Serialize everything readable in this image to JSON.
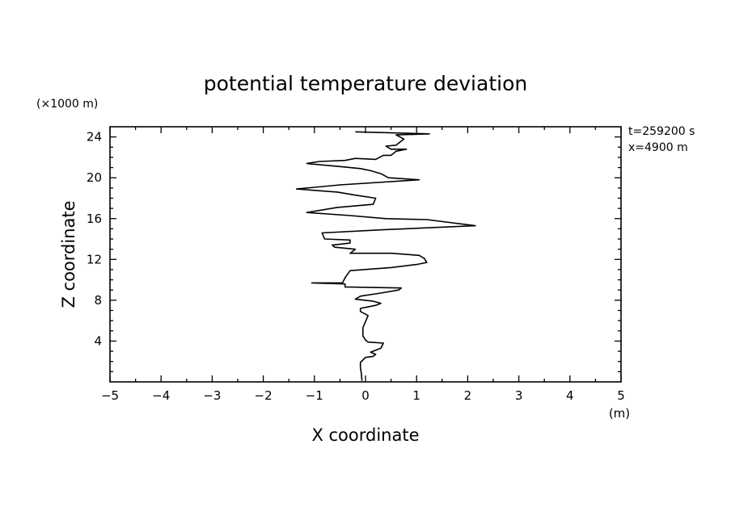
{
  "chart_data": {
    "type": "line",
    "title": "potential temperature deviation",
    "xlabel": "X coordinate",
    "ylabel": "Z coordinate",
    "x_unit": "(m)",
    "y_unit": "(×1000 m)",
    "annotations": [
      "t=259200 s",
      "x=4900 m"
    ],
    "xlim": [
      -5,
      5
    ],
    "ylim": [
      0,
      25
    ],
    "xticks": [
      -5,
      -4,
      -3,
      -2,
      -1,
      0,
      1,
      2,
      3,
      4,
      5
    ],
    "yticks": [
      4,
      8,
      12,
      16,
      20,
      24
    ],
    "grid": false,
    "series": [
      {
        "x": [
          -0.07,
          -0.08,
          -0.1,
          -0.1,
          0.0,
          0.15,
          0.2,
          0.1,
          0.3,
          0.35,
          0.05,
          0.0,
          -0.05,
          -0.05,
          0.0,
          0.05,
          -0.1,
          -0.1,
          0.2,
          0.3,
          0.15,
          -0.2,
          -0.1,
          0.3,
          0.65,
          0.7,
          -0.4,
          -0.4,
          -1.05,
          -0.45,
          -0.4,
          -0.3,
          0.5,
          1.0,
          1.2,
          1.15,
          1.05,
          0.5,
          -0.3,
          -0.2,
          -0.6,
          -0.65,
          -0.3,
          -0.3,
          -0.8,
          -0.85,
          0.3,
          2.15,
          1.2,
          0.4,
          -0.3,
          -1.15,
          -0.55,
          0.15,
          0.2,
          -0.2,
          -0.55,
          -1.35,
          -0.5,
          1.05,
          0.45,
          0.3,
          0.1,
          -0.1,
          -0.5,
          -1.15,
          -0.9,
          -0.4,
          -0.2,
          0.2,
          0.35,
          0.5,
          0.6,
          0.8,
          0.5,
          0.4,
          0.6,
          0.65,
          0.75,
          0.6,
          1.25,
          -0.2
        ],
        "y": [
          0.1,
          0.8,
          1.4,
          1.9,
          2.4,
          2.5,
          2.7,
          2.9,
          3.3,
          3.8,
          3.9,
          4.1,
          4.5,
          5.3,
          5.9,
          6.5,
          6.9,
          7.2,
          7.5,
          7.7,
          7.9,
          8.1,
          8.4,
          8.7,
          9.0,
          9.2,
          9.3,
          9.6,
          9.7,
          9.7,
          10.2,
          10.9,
          11.2,
          11.5,
          11.7,
          12.1,
          12.4,
          12.6,
          12.6,
          13.0,
          13.2,
          13.4,
          13.6,
          13.9,
          14.0,
          14.6,
          14.9,
          15.3,
          15.9,
          16.0,
          16.3,
          16.6,
          17.1,
          17.4,
          18.0,
          18.3,
          18.6,
          18.9,
          19.3,
          19.8,
          20.0,
          20.4,
          20.7,
          20.9,
          21.1,
          21.4,
          21.6,
          21.7,
          21.9,
          21.8,
          22.2,
          22.2,
          22.6,
          22.8,
          22.8,
          23.1,
          23.2,
          23.4,
          23.8,
          24.2,
          24.3,
          24.5
        ]
      }
    ]
  }
}
